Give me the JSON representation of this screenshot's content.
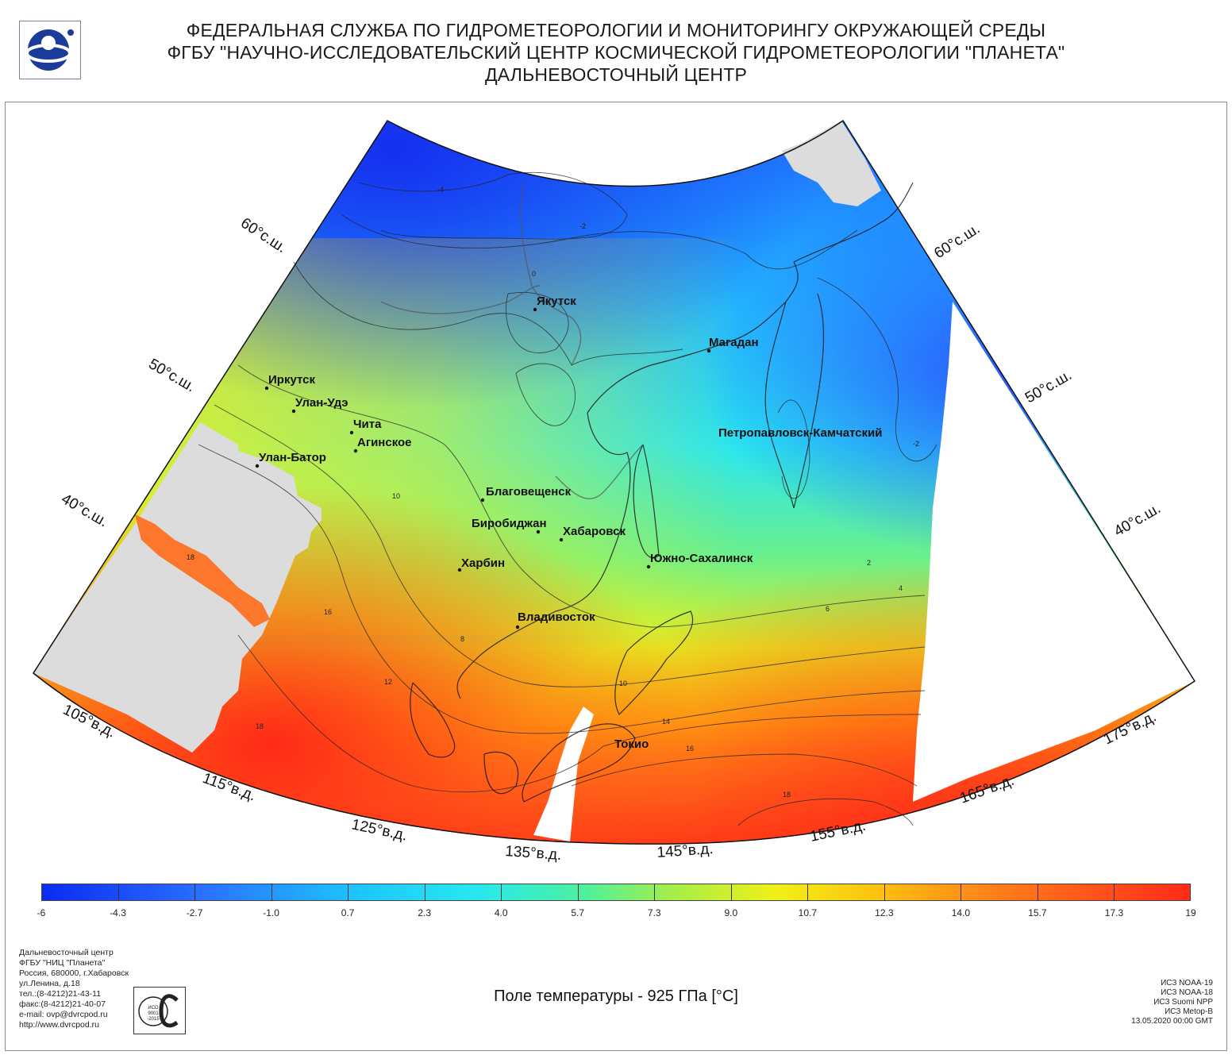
{
  "header": {
    "line1": "ФЕДЕРАЛЬНАЯ СЛУЖБА ПО ГИДРОМЕТЕОРОЛОГИИ И МОНИТОРИНГУ ОКРУЖАЮЩЕЙ СРЕДЫ",
    "line2": "ФГБУ \"НАУЧНО-ИССЛЕДОВАТЕЛЬСКИЙ ЦЕНТР КОСМИЧЕСКОЙ ГИДРОМЕТЕОРОЛОГИИ \"ПЛАНЕТА\"",
    "line3": "ДАЛЬНЕВОСТОЧНЫЙ ЦЕНТР"
  },
  "map": {
    "lat_labels": [
      "60°с.ш.",
      "50°с.ш.",
      "40°с.ш.",
      "60°с.ш.",
      "50°с.ш.",
      "40°с.ш."
    ],
    "lon_labels": [
      "105°в.д.",
      "115°в.д.",
      "125°в.д.",
      "135°в.д.",
      "145°в.д.",
      "155°в.д.",
      "165°в.д.",
      "175°в.д."
    ],
    "cities": [
      "Якутск",
      "Магадан",
      "Иркутск",
      "Улан-Удэ",
      "Чита",
      "Агинское",
      "Улан-Батор",
      "Петропавловск-Камчатский",
      "Благовещенск",
      "Биробиджан",
      "Хабаровск",
      "Харбин",
      "Южно-Сахалинск",
      "Владивосток",
      "Токио"
    ],
    "isoline_labels": [
      "-4",
      "-2",
      "0",
      "2",
      "4",
      "6",
      "8",
      "10",
      "12",
      "14",
      "16",
      "18",
      "-2",
      "10",
      "16",
      "18",
      "18"
    ],
    "unit": "°C",
    "nodata_color": "#dcdcdc"
  },
  "legend": {
    "ticks": [
      "-6",
      "-4.3",
      "-2.7",
      "-1.0",
      "0.7",
      "2.3",
      "4.0",
      "5.7",
      "7.3",
      "9.0",
      "10.7",
      "12.3",
      "14.0",
      "15.7",
      "17.3",
      "19"
    ],
    "colors": [
      "#0a2cf0",
      "#2a70ff",
      "#1cc8ff",
      "#28e8ee",
      "#4cf0a0",
      "#a6ee48",
      "#f0f018",
      "#ffc010",
      "#ff7a1a",
      "#ff2a18"
    ]
  },
  "footer": {
    "org_lines": [
      "Дальневосточный центр",
      "ФГБУ \"НИЦ \"Планета\"",
      "Россия, 680000, г.Хабаровск",
      "ул.Ленина, д.18",
      "тел.:(8-4212)21-43-11",
      "факс:(8-4212)21-40-07",
      "e-mail: ovp@dvrcpod.ru",
      "http://www.dvrcpod.ru"
    ],
    "caption": "Поле температуры - 925 ГПа [°C]",
    "iso_mark": "ИСО 9001 -2015",
    "sat_lines": [
      "ИСЗ NOAA-19",
      "ИСЗ NOAA-18",
      "ИСЗ Suomi NPP",
      "ИСЗ Metop-B",
      "13.05.2020 00:00 GMT"
    ]
  }
}
